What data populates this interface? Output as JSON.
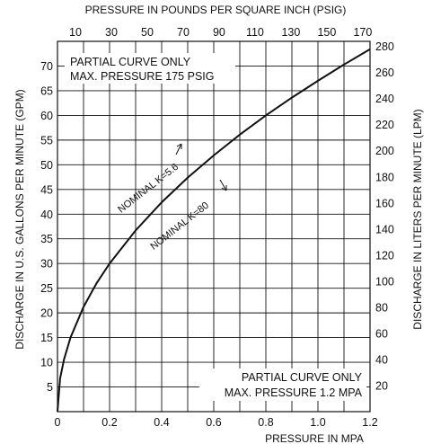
{
  "chart_data": {
    "type": "line",
    "title": "",
    "axes": {
      "bottom": {
        "label": "PRESSURE IN MPA",
        "range": [
          0,
          1.2
        ],
        "ticks": [
          "0",
          "0.2",
          "0.4",
          "0.6",
          "0.8",
          "1.0",
          "1.2"
        ]
      },
      "top": {
        "label": "PRESSURE IN POUNDS PER SQUARE INCH (PSIG)",
        "ticks": [
          "10",
          "30",
          "50",
          "70",
          "90",
          "110",
          "130",
          "150",
          "170"
        ]
      },
      "left": {
        "label": "DISCHARGE IN U.S. GALLONS PER MINUTE (GPM)",
        "range": [
          0,
          75
        ],
        "ticks": [
          "5",
          "10",
          "15",
          "20",
          "25",
          "30",
          "35",
          "40",
          "45",
          "50",
          "55",
          "60",
          "65",
          "70"
        ]
      },
      "right": {
        "label": "DISCHARGE IN LITERS PER MINUTE (LPM)",
        "ticks": [
          "20",
          "40",
          "60",
          "80",
          "100",
          "120",
          "140",
          "160",
          "180",
          "200",
          "220",
          "240",
          "260",
          "280"
        ]
      }
    },
    "grid": true,
    "series": [
      {
        "name": "NOMINAL K=5.6 / NOMINAL K=80",
        "x": [
          0,
          0.01,
          0.025,
          0.05,
          0.1,
          0.15,
          0.2,
          0.3,
          0.4,
          0.5,
          0.6,
          0.7,
          0.8,
          0.9,
          1.0,
          1.1,
          1.2
        ],
        "y": [
          0,
          6.7,
          10.6,
          15.0,
          21.2,
          26.0,
          30.0,
          36.7,
          42.4,
          47.4,
          51.9,
          56.1,
          60.0,
          63.6,
          67.0,
          70.3,
          73.4
        ]
      }
    ],
    "annotations": {
      "top_note": [
        "PARTIAL CURVE ONLY",
        "MAX. PRESSURE 175 PSIG"
      ],
      "bottom_note": [
        "PARTIAL CURVE ONLY",
        "MAX. PRESSURE 1.2 MPA"
      ],
      "k_gpm": "NOMINAL K=5.6",
      "k_lpm": "NOMINAL K=80"
    }
  }
}
